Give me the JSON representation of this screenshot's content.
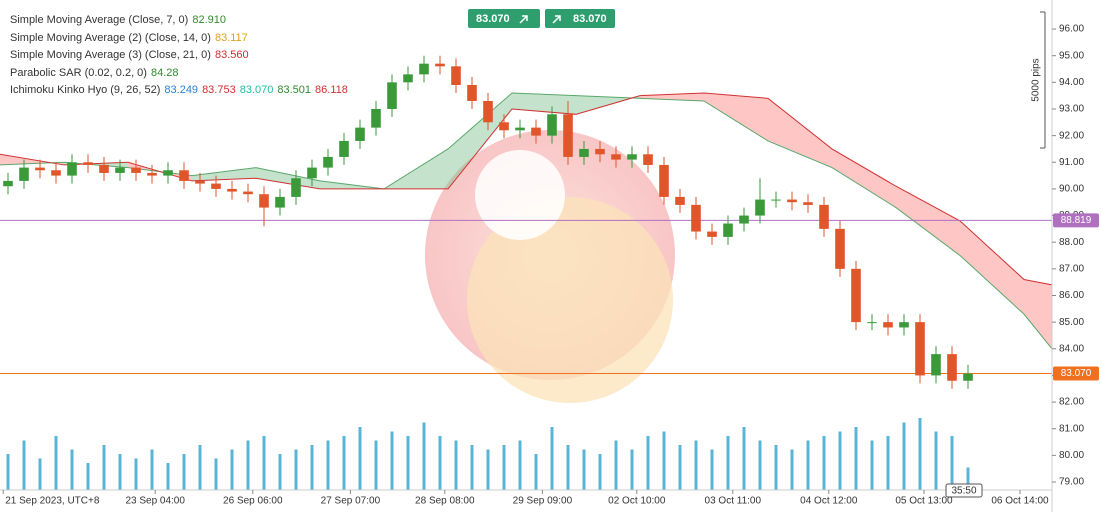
{
  "chart_data": {
    "type": "candlestick",
    "sell_label": "83.070",
    "buy_label": "83.070",
    "scale_label": "5000 pips",
    "countdown": "35:50",
    "legend": [
      {
        "name": "Simple Moving Average (Close, 7, 0)",
        "values": [
          {
            "text": "82.910",
            "color": "#2e8b2e"
          }
        ]
      },
      {
        "name": "Simple Moving Average (2) (Close, 14, 0)",
        "values": [
          {
            "text": "83.117",
            "color": "#e0a020"
          }
        ]
      },
      {
        "name": "Simple Moving Average (3) (Close, 21, 0)",
        "values": [
          {
            "text": "83.560",
            "color": "#d03030"
          }
        ]
      },
      {
        "name": "Parabolic SAR (0.02, 0.2, 0)",
        "values": [
          {
            "text": "84.28",
            "color": "#2e8b2e"
          }
        ]
      },
      {
        "name": "Ichimoku Kinko Hyo (9, 26, 52)",
        "values": [
          {
            "text": "83.249",
            "color": "#2a7fd0"
          },
          {
            "text": "83.753",
            "color": "#d03030"
          },
          {
            "text": "83.070",
            "color": "#20c0a0"
          },
          {
            "text": "83.501",
            "color": "#2e8b2e"
          },
          {
            "text": "86.118",
            "color": "#d03030"
          }
        ]
      }
    ],
    "up_color": "#3a9a3a",
    "down_color": "#e0552a",
    "volume_color": "#5ab4d6",
    "xlim": [
      -0.5,
      65.25
    ],
    "ylim": [
      78.7,
      97.09
    ],
    "volume_lim": [
      0,
      100
    ],
    "xticks": [
      {
        "value": -0.3,
        "label": "21 Sep 2023, UTC+8"
      },
      {
        "value": 9.2,
        "label": "23 Sep 04:00"
      },
      {
        "value": 15.3,
        "label": "26 Sep 06:00"
      },
      {
        "value": 21.4,
        "label": "27 Sep 07:00"
      },
      {
        "value": 27.3,
        "label": "28 Sep 08:00"
      },
      {
        "value": 33.4,
        "label": "29 Sep 09:00"
      },
      {
        "value": 39.3,
        "label": "02 Oct 10:00"
      },
      {
        "value": 45.3,
        "label": "03 Oct 11:00"
      },
      {
        "value": 51.3,
        "label": "04 Oct 12:00"
      },
      {
        "value": 57.25,
        "label": "05 Oct 13:00"
      },
      {
        "value": 63.25,
        "label": "06 Oct 14:00"
      }
    ],
    "yticks": [
      {
        "value": 79,
        "label": "79.00"
      },
      {
        "value": 80,
        "label": "80.00"
      },
      {
        "value": 81,
        "label": "81.00"
      },
      {
        "value": 82,
        "label": "82.00"
      },
      {
        "value": 83,
        "label": "83.00"
      },
      {
        "value": 84,
        "label": "84.00"
      },
      {
        "value": 85,
        "label": "85.00"
      },
      {
        "value": 86,
        "label": "86.00"
      },
      {
        "value": 87,
        "label": "87.00"
      },
      {
        "value": 88,
        "label": "88.00"
      },
      {
        "value": 89,
        "label": "89.00"
      },
      {
        "value": 90,
        "label": "90.00"
      },
      {
        "value": 91,
        "label": "91.00"
      },
      {
        "value": 92,
        "label": "92.00"
      },
      {
        "value": 93,
        "label": "93.00"
      },
      {
        "value": 94,
        "label": "94.00"
      },
      {
        "value": 95,
        "label": "95.00"
      },
      {
        "value": 96,
        "label": "96.00"
      }
    ],
    "levels": [
      {
        "value": 88.819,
        "label": "88.819",
        "color": "#b070c0"
      },
      {
        "value": 83.07,
        "label": "83.070",
        "color": "#f07020"
      }
    ],
    "open": [
      90.1,
      90.3,
      90.8,
      90.7,
      90.5,
      91.0,
      90.9,
      90.6,
      90.8,
      90.6,
      90.5,
      90.7,
      90.3,
      90.2,
      90.0,
      89.9,
      89.8,
      89.3,
      89.7,
      90.4,
      90.8,
      91.2,
      91.8,
      92.3,
      93.0,
      94.0,
      94.3,
      94.7,
      94.6,
      93.9,
      93.3,
      92.5,
      92.2,
      92.3,
      92.0,
      92.8,
      91.2,
      91.5,
      91.3,
      91.1,
      91.3,
      90.9,
      89.7,
      89.4,
      88.4,
      88.2,
      88.7,
      89.0,
      89.6,
      89.6,
      89.5,
      89.4,
      88.5,
      87.0,
      85.0,
      85.0,
      84.8,
      85.0,
      83.0,
      83.8,
      82.8
    ],
    "high": [
      90.6,
      91.1,
      91.1,
      91.0,
      91.3,
      91.3,
      91.2,
      91.1,
      91.1,
      90.9,
      91.0,
      91.0,
      90.6,
      90.5,
      90.3,
      90.2,
      90.1,
      90.0,
      90.7,
      91.1,
      91.5,
      92.1,
      92.6,
      93.3,
      94.3,
      94.6,
      95.0,
      95.0,
      94.9,
      94.2,
      93.6,
      92.8,
      92.6,
      92.6,
      93.1,
      93.3,
      91.8,
      91.8,
      91.6,
      91.6,
      91.6,
      91.2,
      90.0,
      89.7,
      88.7,
      89.0,
      89.3,
      90.4,
      89.9,
      89.9,
      89.8,
      89.7,
      88.8,
      87.3,
      85.3,
      85.3,
      85.3,
      85.3,
      84.1,
      84.1,
      83.4
    ],
    "low": [
      89.8,
      90.0,
      90.4,
      90.2,
      90.2,
      90.6,
      90.3,
      90.3,
      90.3,
      90.2,
      90.2,
      90.0,
      89.9,
      89.7,
      89.6,
      89.5,
      88.6,
      89.0,
      89.4,
      90.1,
      90.5,
      90.9,
      91.5,
      92.0,
      92.7,
      93.7,
      94.0,
      94.3,
      93.6,
      93.0,
      92.2,
      91.9,
      91.9,
      91.7,
      91.7,
      90.9,
      90.9,
      91.0,
      90.8,
      90.8,
      90.6,
      89.4,
      89.1,
      88.1,
      87.9,
      87.9,
      88.4,
      88.7,
      89.3,
      89.2,
      89.1,
      88.2,
      86.7,
      84.7,
      84.7,
      84.5,
      84.5,
      82.7,
      82.7,
      82.5,
      82.5
    ],
    "close": [
      90.3,
      90.8,
      90.7,
      90.5,
      91.0,
      90.9,
      90.6,
      90.8,
      90.6,
      90.5,
      90.7,
      90.3,
      90.2,
      90.0,
      89.9,
      89.8,
      89.3,
      89.7,
      90.4,
      90.8,
      91.2,
      91.8,
      92.3,
      93.0,
      94.0,
      94.3,
      94.7,
      94.6,
      93.9,
      93.3,
      92.5,
      92.2,
      92.3,
      92.0,
      92.8,
      91.2,
      91.5,
      91.3,
      91.1,
      91.3,
      90.9,
      89.7,
      89.4,
      88.4,
      88.2,
      88.7,
      89.0,
      89.6,
      89.6,
      89.5,
      89.4,
      88.5,
      87.0,
      85.0,
      85.0,
      84.8,
      85.0,
      83.0,
      83.8,
      82.8,
      83.07
    ],
    "volume": [
      40,
      55,
      35,
      60,
      45,
      30,
      50,
      40,
      35,
      45,
      30,
      40,
      50,
      35,
      45,
      55,
      60,
      40,
      45,
      50,
      55,
      60,
      70,
      55,
      65,
      60,
      75,
      60,
      55,
      50,
      45,
      50,
      55,
      40,
      70,
      50,
      45,
      40,
      55,
      45,
      60,
      65,
      50,
      55,
      45,
      60,
      70,
      55,
      50,
      45,
      55,
      60,
      65,
      70,
      55,
      60,
      75,
      80,
      65,
      60,
      25
    ],
    "cloud": {
      "x": [
        -0.5,
        3.5,
        7.5,
        11.5,
        15.5,
        19.5,
        23.5,
        27.5,
        31.5,
        35.5,
        39.5,
        43.5,
        47.5,
        51.5,
        55.5,
        59.5,
        63.5,
        65.25
      ],
      "span_a": [
        90.9,
        91.0,
        90.8,
        90.5,
        90.8,
        90.3,
        90.0,
        91.5,
        93.6,
        93.5,
        93.4,
        93.3,
        91.8,
        90.8,
        89.3,
        87.5,
        85.3,
        84.0
      ],
      "span_b": [
        91.3,
        90.9,
        91.0,
        90.3,
        90.4,
        90.0,
        90.0,
        90.0,
        93.0,
        92.8,
        93.5,
        93.6,
        93.4,
        91.5,
        90.1,
        88.8,
        86.6,
        86.4
      ],
      "bull_color": "#7cbf8e",
      "bear_color": "#ff8080",
      "a_color": "#5aa86a",
      "b_color": "#d03030"
    }
  }
}
